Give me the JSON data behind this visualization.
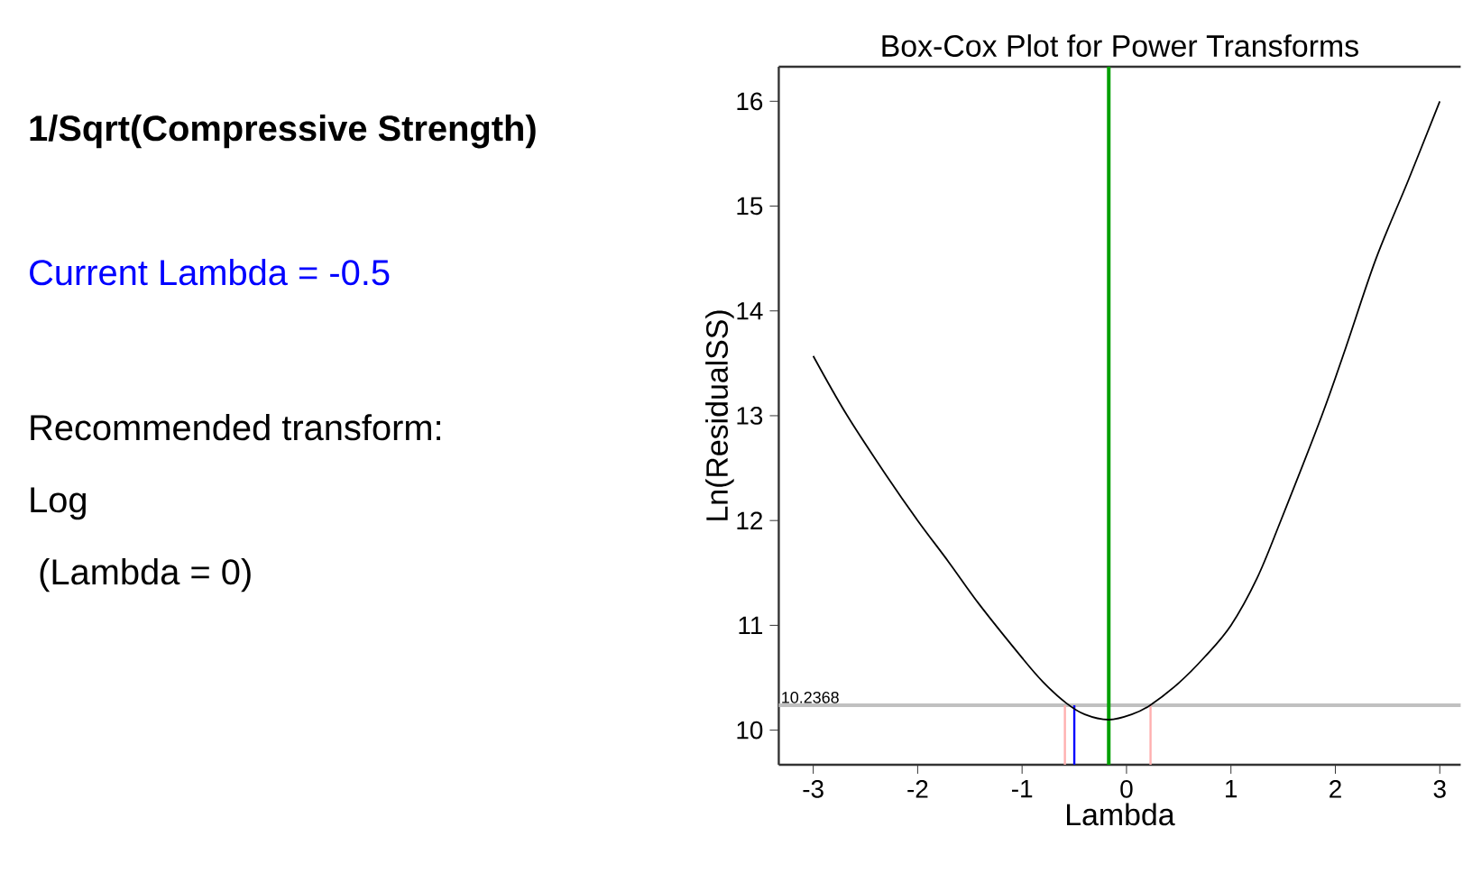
{
  "chart_data": {
    "type": "line",
    "title": "Box-Cox Plot for Power Transforms",
    "subtitle": "1/Sqrt(Compressive Strength)",
    "xlabel": "Lambda",
    "ylabel": "Ln(ResidualSS)",
    "annotations": [
      "Current Lambda = -0.5",
      "Recommended transform:",
      "Log",
      " (Lambda = 0)"
    ],
    "series": [
      {
        "color": "#000000",
        "x": [
          -3,
          -2.68,
          -2.3,
          -2,
          -1.7,
          -1.41,
          -1,
          -0.8,
          -0.58,
          -0.4,
          -0.17,
          0.05,
          0.23,
          0.5,
          0.75,
          1,
          1.25,
          1.47,
          1.87,
          2.1,
          2.39,
          2.7,
          3
        ],
        "values": [
          13.57,
          13.01,
          12.43,
          12.0,
          11.6,
          11.2,
          10.69,
          10.46,
          10.26,
          10.15,
          10.1,
          10.15,
          10.24,
          10.45,
          10.7,
          11.0,
          11.45,
          11.98,
          13.0,
          13.65,
          14.5,
          15.25,
          16.0
        ]
      }
    ],
    "ref_lines": [
      {
        "axis": "y",
        "value": 10.2368,
        "label": "10.2368",
        "color": "#c0c0c0"
      },
      {
        "axis": "x",
        "value": -0.59,
        "color": "#ffb0b0"
      },
      {
        "axis": "x",
        "value": 0.23,
        "color": "#ffb0b0"
      },
      {
        "axis": "x",
        "value": -0.5,
        "color": "#0000ff"
      },
      {
        "axis": "x",
        "value": -0.17,
        "color": "#00a000"
      }
    ],
    "xlim": [
      -3.33,
      3.2
    ],
    "ylim": [
      9.67,
      16.33
    ],
    "xticks": [
      -3,
      -2,
      -1,
      0,
      1,
      2,
      3
    ],
    "yticks": [
      10,
      11,
      12,
      13,
      14,
      15,
      16
    ],
    "grid": false,
    "marker": "none",
    "line_style": "solid"
  }
}
